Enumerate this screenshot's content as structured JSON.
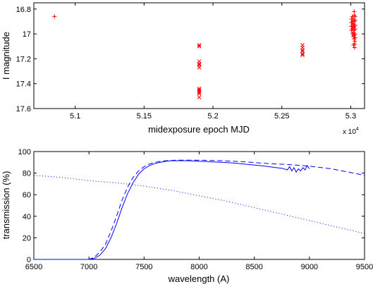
{
  "chart_data": [
    {
      "type": "scatter",
      "xlabel": "midexposure epoch MJD",
      "ylabel": "I magnitude",
      "x_exponent_label": "x 10",
      "x_exponent_power": "4",
      "xlim": [
        5.07,
        5.31
      ],
      "ylim": [
        17.6,
        16.75
      ],
      "y_inverted": true,
      "grid": false,
      "color": "#ff0000",
      "xticks": [
        5.1,
        5.15,
        5.2,
        5.25,
        5.3
      ],
      "xtick_labels": [
        "5.1",
        "5.15",
        "5.2",
        "5.25",
        "5.3"
      ],
      "yticks": [
        16.8,
        17.0,
        17.2,
        17.4,
        17.6
      ],
      "ytick_labels": [
        "16.8",
        "17",
        "17.2",
        "17.4",
        "17.6"
      ],
      "series": [
        {
          "marker": "plus",
          "x": [
            5.085,
            5.3005,
            5.3005,
            5.3005,
            5.3005,
            5.3012,
            5.3012,
            5.3012,
            5.3012,
            5.3012,
            5.3018,
            5.3018,
            5.3018,
            5.3018,
            5.3018,
            5.3025,
            5.3025,
            5.3025,
            5.3025,
            5.3025,
            5.3025,
            5.3025,
            5.3032,
            5.3032,
            5.3032,
            5.3032,
            5.3032,
            5.3032,
            5.3028,
            5.3028,
            5.302,
            5.303
          ],
          "y": [
            16.86,
            16.88,
            16.91,
            16.94,
            16.97,
            16.86,
            16.9,
            16.93,
            16.96,
            17.0,
            16.88,
            16.92,
            16.95,
            16.99,
            17.02,
            16.82,
            16.85,
            16.9,
            16.94,
            16.97,
            17.01,
            17.04,
            16.86,
            16.89,
            16.93,
            16.96,
            17.0,
            17.03,
            17.08,
            17.11,
            17.09,
            17.06
          ]
        },
        {
          "marker": "x",
          "x": [
            5.19,
            5.19,
            5.19,
            5.19,
            5.19,
            5.19,
            5.19,
            5.19,
            5.19,
            5.19,
            5.19,
            5.19,
            5.265,
            5.265,
            5.265,
            5.265,
            5.265,
            5.265
          ],
          "y": [
            17.09,
            17.1,
            17.22,
            17.24,
            17.25,
            17.27,
            17.44,
            17.45,
            17.46,
            17.47,
            17.48,
            17.51,
            17.09,
            17.11,
            17.13,
            17.14,
            17.16,
            17.17
          ]
        }
      ]
    },
    {
      "type": "line",
      "xlabel": "wavelength (A)",
      "ylabel": "transmission (%)",
      "xlim": [
        6500,
        9500
      ],
      "ylim": [
        0,
        100
      ],
      "grid": false,
      "color": "#0000ff",
      "xticks": [
        6500,
        7000,
        7500,
        8000,
        8500,
        9000,
        9500
      ],
      "xtick_labels": [
        "6500",
        "7000",
        "7500",
        "8000",
        "8500",
        "9000",
        "9500"
      ],
      "yticks": [
        0,
        20,
        40,
        60,
        80,
        100
      ],
      "ytick_labels": [
        "0",
        "20",
        "40",
        "60",
        "80",
        "100"
      ],
      "series": [
        {
          "style": "solid",
          "x": [
            6500,
            7000,
            7050,
            7100,
            7150,
            7200,
            7250,
            7300,
            7350,
            7400,
            7450,
            7500,
            7550,
            7600,
            7650,
            7700,
            7750,
            7800,
            7900,
            8000,
            8100,
            8200,
            8300,
            8400,
            8500,
            8600,
            8700,
            8750,
            8800,
            8820,
            8840,
            8860,
            8880,
            8900,
            8920,
            8940,
            8960,
            8980,
            9000
          ],
          "y": [
            0,
            0,
            1,
            4,
            10,
            20,
            33,
            48,
            61,
            71,
            79,
            84,
            87,
            89,
            90,
            91,
            91.5,
            91.5,
            91.5,
            91,
            90.5,
            90,
            89.5,
            88.5,
            87.5,
            86.5,
            85,
            84.5,
            83,
            86,
            82,
            85,
            81,
            84,
            82,
            85,
            83,
            87,
            84
          ]
        },
        {
          "style": "dashed",
          "x": [
            6500,
            7000,
            7050,
            7100,
            7150,
            7200,
            7250,
            7300,
            7350,
            7400,
            7450,
            7500,
            7550,
            7600,
            7650,
            7700,
            7800,
            7900,
            8000,
            8200,
            8400,
            8600,
            8800,
            9000,
            9200,
            9400,
            9500
          ],
          "y": [
            0,
            0,
            2,
            7,
            14,
            26,
            40,
            55,
            67,
            76,
            82,
            86,
            88.5,
            90,
            91,
            91.5,
            92,
            92,
            92,
            91.5,
            90.5,
            89,
            88,
            86.5,
            84,
            80,
            78
          ]
        },
        {
          "style": "dotted",
          "x": [
            6500,
            6750,
            7000,
            7250,
            7500,
            7750,
            8000,
            8250,
            8500,
            8750,
            9000,
            9250,
            9500
          ],
          "y": [
            78,
            76,
            73,
            71,
            68,
            64,
            59,
            54,
            48,
            42,
            36,
            30,
            24
          ]
        }
      ]
    }
  ]
}
